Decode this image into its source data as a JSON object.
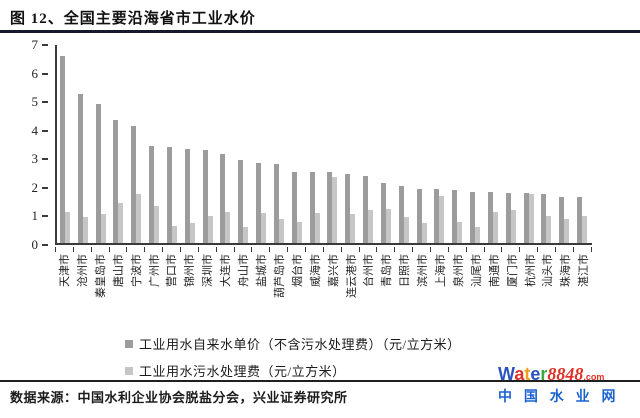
{
  "figure": {
    "title": "图 12、全国主要沿海省市工业水价"
  },
  "source": {
    "label": "数据来源：中国水利企业协会脱盐分会，兴业证券研究所"
  },
  "watermark": {
    "brand_letters": [
      {
        "text": "W",
        "color": "#2a52c2"
      },
      {
        "text": "a",
        "color": "#e03127"
      },
      {
        "text": "t",
        "color": "#f0a01e"
      },
      {
        "text": "e",
        "color": "#2a52c2"
      },
      {
        "text": "r",
        "color": "#3aa63c"
      }
    ],
    "brand_digits": "8848",
    "brand_digits_color": "#e03127",
    "domain_suffix": ".com",
    "site_name": "中 国 水 业 网",
    "site_color": "#1a62cf"
  },
  "chart_data": {
    "type": "bar",
    "title": "全国主要沿海省市工业水价",
    "xlabel": "",
    "ylabel": "",
    "ylim": [
      0,
      7
    ],
    "ytick_step": 1,
    "grid": false,
    "legend_position": "bottom-left",
    "categories": [
      "天津市",
      "沧州市",
      "秦皇岛市",
      "唐山市",
      "宁波市",
      "广州市",
      "营口市",
      "锦州市",
      "深圳市",
      "大连市",
      "舟山市",
      "盐城市",
      "葫芦岛市",
      "烟台市",
      "威海市",
      "嘉兴市",
      "连云港市",
      "台州市",
      "青岛市",
      "日照市",
      "滨州市",
      "上海市",
      "泉州市",
      "汕尾市",
      "南通市",
      "厦门市",
      "杭州市",
      "汕头市",
      "珠海市",
      "湛江市"
    ],
    "series": [
      {
        "name": "工业用水自来水单价（不含污水处理费）（元/立方米）",
        "color": "#9c9c9c",
        "values": [
          6.55,
          5.2,
          4.85,
          4.3,
          4.1,
          3.4,
          3.35,
          3.3,
          3.25,
          3.1,
          2.9,
          2.8,
          2.75,
          2.5,
          2.5,
          2.5,
          2.4,
          2.35,
          2.1,
          2.0,
          1.9,
          1.9,
          1.85,
          1.8,
          1.8,
          1.75,
          1.75,
          1.7,
          1.6,
          1.6
        ]
      },
      {
        "name": "工业用水污水处理费（元/立方米）",
        "color": "#c6c6c6",
        "values": [
          1.1,
          0.9,
          1.0,
          1.4,
          1.7,
          1.3,
          0.6,
          0.7,
          0.95,
          1.1,
          0.55,
          1.05,
          0.85,
          0.75,
          1.05,
          2.3,
          1.0,
          1.15,
          1.2,
          0.9,
          0.7,
          1.65,
          0.75,
          0.55,
          1.1,
          1.15,
          1.7,
          0.95,
          0.85,
          0.95
        ]
      }
    ]
  }
}
